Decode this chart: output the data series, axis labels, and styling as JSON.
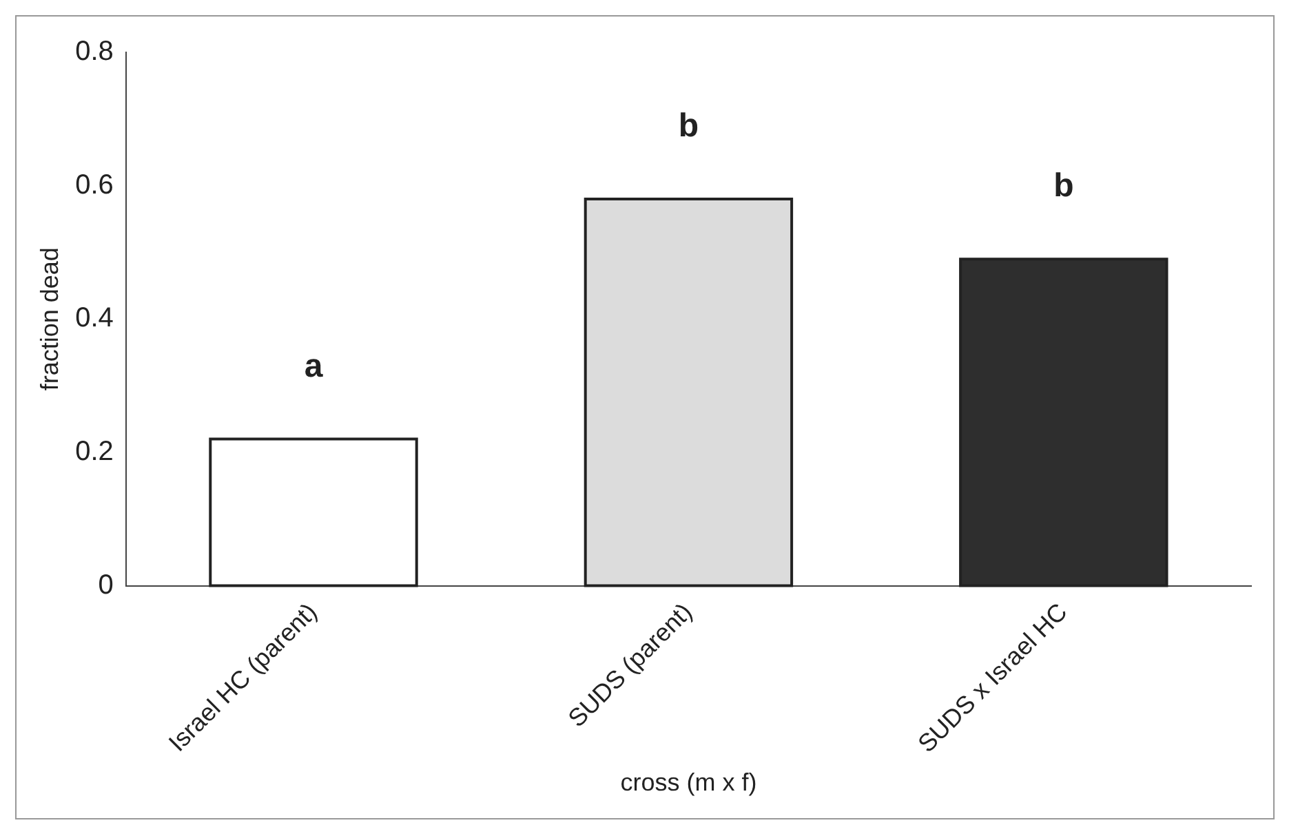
{
  "chart_data": {
    "type": "bar",
    "xlabel": "cross (m x f)",
    "ylabel": "fraction dead",
    "categories": [
      "Israel HC (parent)",
      "SUDS (parent)",
      "SUDS x Israel HC"
    ],
    "values": [
      0.22,
      0.58,
      0.49
    ],
    "colors": [
      "#ffffff",
      "#dcdcdc",
      "#2e2e2e"
    ],
    "ylim": [
      0,
      0.8
    ],
    "yticks": [
      0,
      0.2,
      0.4,
      0.6,
      0.8
    ],
    "grid": false,
    "legend": false,
    "annotations": [
      {
        "text": "a",
        "x": "Israel HC (parent)",
        "y": 0.22
      },
      {
        "text": "b",
        "x": "SUDS (parent)",
        "y": 0.58
      },
      {
        "text": "b",
        "x": "SUDS x Israel HC",
        "y": 0.49
      }
    ]
  }
}
